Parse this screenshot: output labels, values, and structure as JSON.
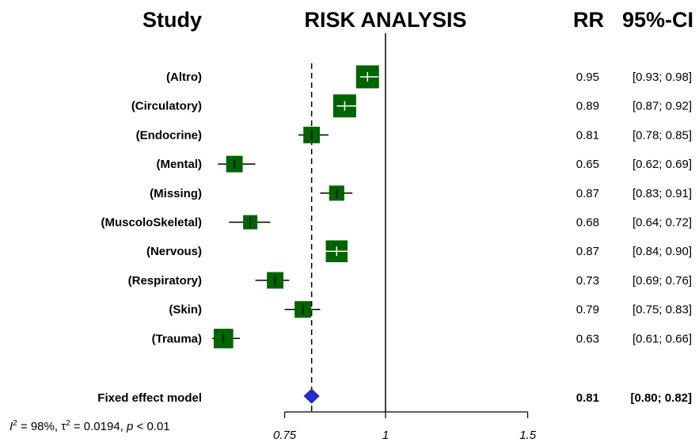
{
  "header": {
    "study": "Study",
    "title": "RISK ANALYSIS",
    "rr": "RR",
    "ci": "95%-CI"
  },
  "chart_data": {
    "type": "forest",
    "title": "RISK ANALYSIS",
    "scale": "log",
    "xlim": [
      0.6,
      1.5
    ],
    "ticks": [
      {
        "value": 0.75,
        "label": "0.75"
      },
      {
        "value": 1,
        "label": "1"
      },
      {
        "value": 1.5,
        "label": "1.5"
      }
    ],
    "reference_line": 1,
    "pooled_line": 0.81,
    "square_color": "#006400",
    "diamond_color": "#1f2fd6",
    "studies": [
      {
        "label": "(Altro)",
        "rr": 0.95,
        "lower": 0.93,
        "upper": 0.98,
        "rr_text": "0.95",
        "ci_text": "[0.93; 0.98]",
        "weight": 1.0,
        "inner_line": "white"
      },
      {
        "label": "(Circulatory)",
        "rr": 0.89,
        "lower": 0.87,
        "upper": 0.92,
        "rr_text": "0.89",
        "ci_text": "[0.87; 0.92]",
        "weight": 1.0,
        "inner_line": "white"
      },
      {
        "label": "(Endocrine)",
        "rr": 0.81,
        "lower": 0.78,
        "upper": 0.85,
        "rr_text": "0.81",
        "ci_text": "[0.78; 0.85]",
        "weight": 0.72,
        "inner_line": "black"
      },
      {
        "label": "(Mental)",
        "rr": 0.65,
        "lower": 0.62,
        "upper": 0.69,
        "rr_text": "0.65",
        "ci_text": "[0.62; 0.69]",
        "weight": 0.72,
        "inner_line": "black"
      },
      {
        "label": "(Missing)",
        "rr": 0.87,
        "lower": 0.83,
        "upper": 0.91,
        "rr_text": "0.87",
        "ci_text": "[0.83; 0.91]",
        "weight": 0.66,
        "inner_line": "black"
      },
      {
        "label": "(MuscoloSkeletal)",
        "rr": 0.68,
        "lower": 0.64,
        "upper": 0.72,
        "rr_text": "0.68",
        "ci_text": "[0.64; 0.72]",
        "weight": 0.62,
        "inner_line": "black"
      },
      {
        "label": "(Nervous)",
        "rr": 0.87,
        "lower": 0.84,
        "upper": 0.9,
        "rr_text": "0.87",
        "ci_text": "[0.84; 0.90]",
        "weight": 0.95,
        "inner_line": "white"
      },
      {
        "label": "(Respiratory)",
        "rr": 0.73,
        "lower": 0.69,
        "upper": 0.76,
        "rr_text": "0.73",
        "ci_text": "[0.69; 0.76]",
        "weight": 0.72,
        "inner_line": "black"
      },
      {
        "label": "(Skin)",
        "rr": 0.79,
        "lower": 0.75,
        "upper": 0.83,
        "rr_text": "0.79",
        "ci_text": "[0.75; 0.83]",
        "weight": 0.72,
        "inner_line": "black"
      },
      {
        "label": "(Trauma)",
        "rr": 0.63,
        "lower": 0.61,
        "upper": 0.66,
        "rr_text": "0.63",
        "ci_text": "[0.61; 0.66]",
        "weight": 0.85,
        "inner_line": "black"
      }
    ],
    "pooled": {
      "label": "Fixed effect model",
      "rr": 0.81,
      "lower": 0.8,
      "upper": 0.82,
      "rr_text": "0.81",
      "ci_text": "[0.80; 0.82]"
    },
    "heterogeneity": {
      "i2_symbol": "I",
      "i2_sup": "2",
      "i2_text": " = 98%, ",
      "tau_symbol": "τ",
      "tau_sup": "2",
      "tau_text": " = 0.0194, ",
      "p_symbol": "p",
      "p_text": " < 0.01"
    }
  }
}
